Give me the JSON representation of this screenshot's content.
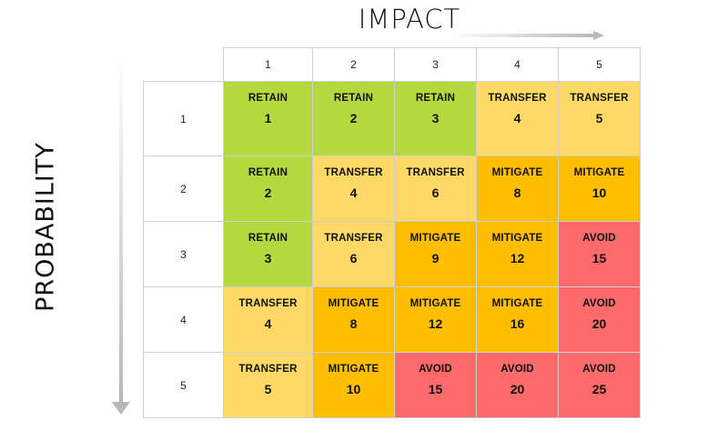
{
  "impact_label": "IMPACT",
  "probability_label": "PROBABILITY",
  "colors": {
    "RETAIN": "#b3d93f",
    "TRANSFER": "#ffd966",
    "MITIGATE": "#ffbf00",
    "AVOID": "#ff6b6b"
  },
  "impact_levels": [
    "1",
    "2",
    "3",
    "4",
    "5"
  ],
  "probability_levels": [
    "1",
    "2",
    "3",
    "4",
    "5"
  ],
  "rows": [
    {
      "cells": [
        {
          "action": "RETAIN",
          "score": "1"
        },
        {
          "action": "RETAIN",
          "score": "2"
        },
        {
          "action": "RETAIN",
          "score": "3"
        },
        {
          "action": "TRANSFER",
          "score": "4"
        },
        {
          "action": "TRANSFER",
          "score": "5"
        }
      ]
    },
    {
      "cells": [
        {
          "action": "RETAIN",
          "score": "2"
        },
        {
          "action": "TRANSFER",
          "score": "4"
        },
        {
          "action": "TRANSFER",
          "score": "6"
        },
        {
          "action": "MITIGATE",
          "score": "8"
        },
        {
          "action": "MITIGATE",
          "score": "10"
        }
      ]
    },
    {
      "cells": [
        {
          "action": "RETAIN",
          "score": "3"
        },
        {
          "action": "TRANSFER",
          "score": "6"
        },
        {
          "action": "MITIGATE",
          "score": "9"
        },
        {
          "action": "MITIGATE",
          "score": "12"
        },
        {
          "action": "AVOID",
          "score": "15"
        }
      ]
    },
    {
      "cells": [
        {
          "action": "TRANSFER",
          "score": "4"
        },
        {
          "action": "MITIGATE",
          "score": "8"
        },
        {
          "action": "MITIGATE",
          "score": "12"
        },
        {
          "action": "MITIGATE",
          "score": "16"
        },
        {
          "action": "AVOID",
          "score": "20"
        }
      ]
    },
    {
      "cells": [
        {
          "action": "TRANSFER",
          "score": "5"
        },
        {
          "action": "MITIGATE",
          "score": "10"
        },
        {
          "action": "AVOID",
          "score": "15"
        },
        {
          "action": "AVOID",
          "score": "20"
        },
        {
          "action": "AVOID",
          "score": "25"
        }
      ]
    }
  ]
}
